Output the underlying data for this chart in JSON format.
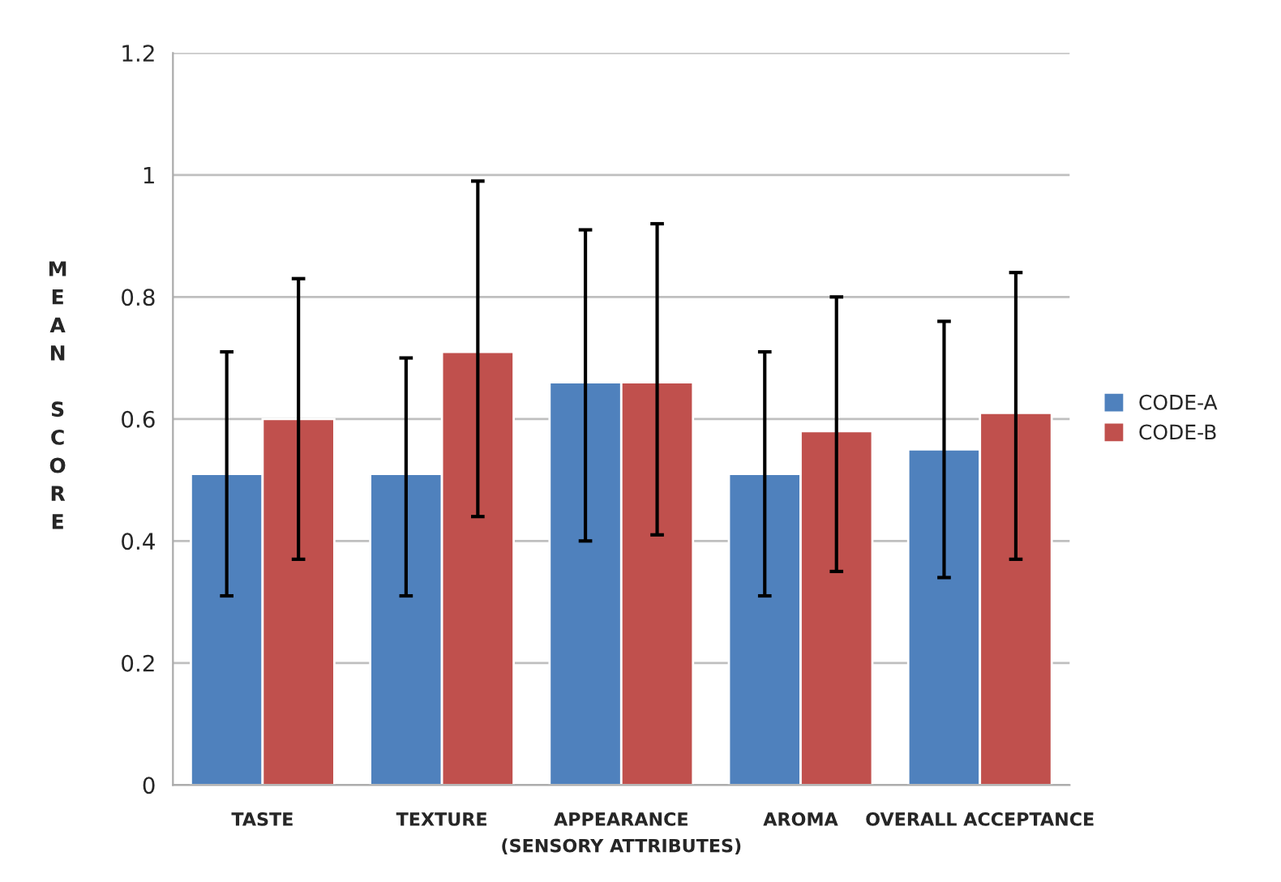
{
  "chart_data": {
    "type": "bar",
    "xlabel": "(SENSORY ATTRIBUTES)",
    "ylabel": "MEAN SCORE",
    "categories": [
      "TASTE",
      "TEXTURE",
      "APPEARANCE",
      "AROMA",
      "OVERALL ACCEPTANCE"
    ],
    "series": [
      {
        "name": "CODE-A",
        "color": "#4f81bd",
        "values": [
          0.51,
          0.51,
          0.66,
          0.51,
          0.55
        ],
        "errors": [
          [
            0.31,
            0.71
          ],
          [
            0.31,
            0.7
          ],
          [
            0.4,
            0.91
          ],
          [
            0.31,
            0.71
          ],
          [
            0.34,
            0.76
          ]
        ]
      },
      {
        "name": "CODE-B",
        "color": "#c0504d",
        "values": [
          0.6,
          0.71,
          0.66,
          0.58,
          0.61
        ],
        "errors": [
          [
            0.37,
            0.83
          ],
          [
            0.44,
            0.99
          ],
          [
            0.41,
            0.92
          ],
          [
            0.35,
            0.8
          ],
          [
            0.37,
            0.84
          ]
        ]
      }
    ],
    "ylim": [
      0,
      1.2
    ],
    "yticks": [
      0,
      0.2,
      0.4,
      0.6,
      0.8,
      1,
      1.2
    ],
    "grid": "y",
    "legend": "right"
  }
}
